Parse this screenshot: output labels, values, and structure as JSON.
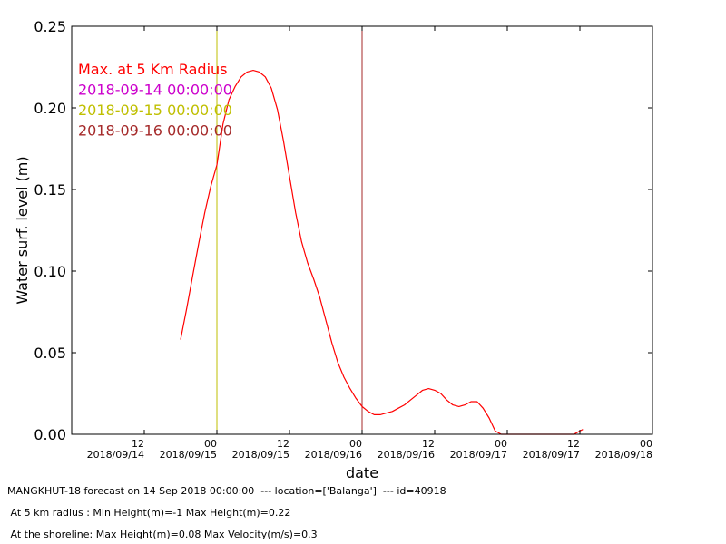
{
  "chart_data": {
    "type": "line",
    "xlabel": "date",
    "ylabel": "Water surf. level (m)",
    "ylim": [
      0,
      0.25
    ],
    "yticks": [
      "0.00",
      "0.05",
      "0.10",
      "0.15",
      "0.20",
      "0.25"
    ],
    "xlim": [
      "2018-09-14 00:00",
      "2018-09-18 00:00"
    ],
    "xticks": [
      {
        "at": "2018-09-14 12:00",
        "hour": "12",
        "date": "2018/09/14"
      },
      {
        "at": "2018-09-15 00:00",
        "hour": "00",
        "date": "2018/09/15"
      },
      {
        "at": "2018-09-15 12:00",
        "hour": "12",
        "date": "2018/09/15"
      },
      {
        "at": "2018-09-16 00:00",
        "hour": "00",
        "date": "2018/09/16"
      },
      {
        "at": "2018-09-16 12:00",
        "hour": "12",
        "date": "2018/09/16"
      },
      {
        "at": "2018-09-17 00:00",
        "hour": "00",
        "date": "2018/09/17"
      },
      {
        "at": "2018-09-17 12:00",
        "hour": "12",
        "date": "2018/09/17"
      },
      {
        "at": "2018-09-18 00:00",
        "hour": "00",
        "date": "2018/09/18"
      }
    ],
    "grid": false,
    "legend_position": "top-left",
    "legend": [
      {
        "label": "Max. at 5 Km Radius",
        "color": "#ff0000"
      },
      {
        "label": "2018-09-14 00:00:00",
        "color": "#cc00cc"
      },
      {
        "label": "2018-09-15 00:00:00",
        "color": "#bfbf00"
      },
      {
        "label": "2018-09-16 00:00:00",
        "color": "#a52a2a"
      }
    ],
    "vlines": [
      {
        "x": "2018-09-15 00:00",
        "color": "#bfbf00"
      },
      {
        "x": "2018-09-16 00:00",
        "color": "#a52a2a"
      }
    ],
    "series": [
      {
        "name": "Max. at 5 Km Radius",
        "color": "#ff0000",
        "x": [
          "2018-09-14 18:00",
          "2018-09-14 19:00",
          "2018-09-14 20:00",
          "2018-09-14 21:00",
          "2018-09-14 22:00",
          "2018-09-14 23:00",
          "2018-09-15 00:00",
          "2018-09-15 01:00",
          "2018-09-15 02:00",
          "2018-09-15 03:00",
          "2018-09-15 04:00",
          "2018-09-15 05:00",
          "2018-09-15 06:00",
          "2018-09-15 07:00",
          "2018-09-15 08:00",
          "2018-09-15 09:00",
          "2018-09-15 10:00",
          "2018-09-15 11:00",
          "2018-09-15 12:00",
          "2018-09-15 13:00",
          "2018-09-15 14:00",
          "2018-09-15 15:00",
          "2018-09-15 16:00",
          "2018-09-15 17:00",
          "2018-09-15 18:00",
          "2018-09-15 19:00",
          "2018-09-15 20:00",
          "2018-09-15 21:00",
          "2018-09-15 22:00",
          "2018-09-15 23:00",
          "2018-09-16 00:00",
          "2018-09-16 01:00",
          "2018-09-16 02:00",
          "2018-09-16 03:00",
          "2018-09-16 04:00",
          "2018-09-16 05:00",
          "2018-09-16 06:00",
          "2018-09-16 07:00",
          "2018-09-16 08:00",
          "2018-09-16 09:00",
          "2018-09-16 10:00",
          "2018-09-16 11:00",
          "2018-09-16 12:00",
          "2018-09-16 13:00",
          "2018-09-16 14:00",
          "2018-09-16 15:00",
          "2018-09-16 16:00",
          "2018-09-16 17:00",
          "2018-09-16 18:00",
          "2018-09-16 19:00",
          "2018-09-16 20:00",
          "2018-09-16 21:00",
          "2018-09-16 22:00",
          "2018-09-16 23:00",
          "2018-09-17 00:00",
          "2018-09-17 01:00",
          "2018-09-17 02:00",
          "2018-09-17 11:00",
          "2018-09-17 12:00",
          "2018-09-17 12:30"
        ],
        "y": [
          0.058,
          0.077,
          0.097,
          0.117,
          0.136,
          0.152,
          0.165,
          0.19,
          0.205,
          0.213,
          0.219,
          0.222,
          0.223,
          0.222,
          0.219,
          0.212,
          0.199,
          0.18,
          0.158,
          0.136,
          0.118,
          0.105,
          0.095,
          0.084,
          0.07,
          0.056,
          0.044,
          0.035,
          0.028,
          0.022,
          0.017,
          0.014,
          0.012,
          0.012,
          0.013,
          0.014,
          0.016,
          0.018,
          0.021,
          0.024,
          0.027,
          0.028,
          0.027,
          0.025,
          0.021,
          0.018,
          0.017,
          0.018,
          0.02,
          0.02,
          0.016,
          0.01,
          0.002,
          0.0,
          0.0,
          0.0,
          0.0,
          0.0,
          0.002,
          0.003
        ]
      }
    ]
  },
  "footer": {
    "line1": "MANGKHUT-18 forecast on 14 Sep 2018 00:00:00  --- location=['Balanga']  --- id=40918",
    "line2": " At 5 km radius : Min Height(m)=-1 Max Height(m)=0.22",
    "line3": " At the shoreline: Max Height(m)=0.08 Max Velocity(m/s)=0.3"
  }
}
